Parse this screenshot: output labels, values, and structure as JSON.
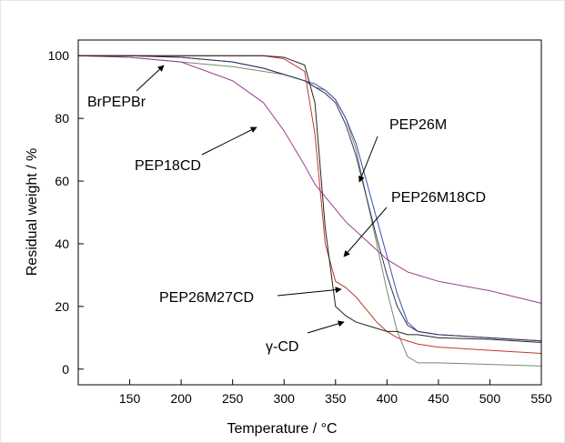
{
  "chart_data": {
    "type": "line",
    "xlabel": "Temperature / °C",
    "ylabel": "Residual weight / %",
    "x": [
      100,
      150,
      200,
      250,
      280,
      300,
      320,
      330,
      340,
      350,
      360,
      370,
      380,
      390,
      400,
      410,
      420,
      430,
      450,
      500,
      550
    ],
    "series": [
      {
        "name": "BrPEPBr",
        "color": "#7a8a6a",
        "values": [
          100,
          99.5,
          98,
          96.5,
          95,
          94,
          92,
          90,
          89,
          86,
          80,
          70,
          55,
          40,
          25,
          12,
          4,
          2,
          2,
          1.5,
          1
        ]
      },
      {
        "name": "PEP18CD",
        "color": "#9b3f8f",
        "values": [
          100,
          99.5,
          98,
          92,
          85,
          76,
          65,
          59,
          55,
          51,
          47,
          44,
          41,
          38,
          35,
          33,
          31,
          30,
          28,
          25,
          21
        ]
      },
      {
        "name": "PEP26M",
        "color": "#3a4fb0",
        "values": [
          100,
          100,
          99.5,
          98,
          96,
          94,
          92,
          91,
          89,
          86,
          80,
          72,
          60,
          48,
          36,
          24,
          15,
          12,
          11,
          10,
          9
        ]
      },
      {
        "name": "PEP26M18CD",
        "color": "#333355",
        "values": [
          100,
          100,
          99.5,
          98,
          96,
          94,
          92,
          90,
          88,
          85,
          78,
          68,
          55,
          42,
          30,
          20,
          14,
          12,
          11,
          10,
          9
        ]
      },
      {
        "name": "PEP26M27CD",
        "color": "#c0392b",
        "values": [
          100,
          100,
          100,
          100,
          100,
          99,
          95,
          75,
          40,
          28,
          26,
          23,
          19,
          15,
          12,
          10,
          9,
          8,
          7,
          6,
          5
        ]
      },
      {
        "name": "γ-CD",
        "color": "#222222",
        "values": [
          100,
          100,
          100,
          100,
          100,
          99.5,
          97,
          85,
          45,
          20,
          17,
          15,
          14,
          13,
          12,
          12,
          11,
          11,
          10,
          9.5,
          8.5
        ]
      }
    ],
    "xlim": [
      100,
      550
    ],
    "xticks": [
      150,
      200,
      250,
      300,
      350,
      400,
      450,
      500,
      550
    ],
    "ylim": [
      -5,
      105
    ],
    "yticks": [
      0,
      20,
      40,
      60,
      80,
      100
    ]
  }
}
